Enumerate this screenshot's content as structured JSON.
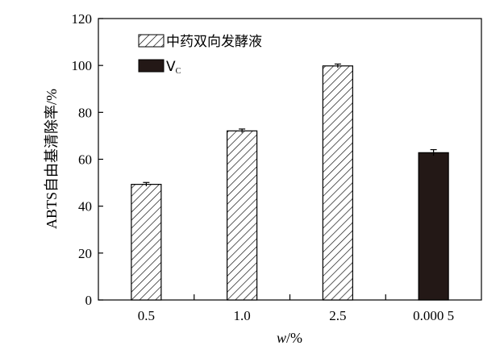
{
  "chart_data": {
    "type": "bar",
    "categories": [
      "0.5",
      "1.0",
      "2.5",
      "0.000 5"
    ],
    "values": [
      49.3,
      72.1,
      99.8,
      62.8
    ],
    "errors": [
      0.8,
      0.8,
      0.8,
      1.3
    ],
    "series_of_bar": [
      0,
      0,
      0,
      1
    ],
    "series": [
      {
        "name": "中药双向发酵液",
        "style": "hatched",
        "color": "#ffffff"
      },
      {
        "name": "V",
        "name_subscript": "C",
        "style": "solid",
        "color": "#231816"
      }
    ],
    "ylim": [
      0,
      120
    ],
    "yticks": [
      0,
      20,
      40,
      60,
      80,
      100,
      120
    ],
    "yticks_labels": [
      "0",
      "20",
      "40",
      "60",
      "80",
      "100",
      "120"
    ],
    "ylabel": "ABTS自由基清除率/%",
    "xlabel_italic": "w",
    "xlabel_rest": "/%",
    "grid": false,
    "legend_position": "top-left"
  }
}
